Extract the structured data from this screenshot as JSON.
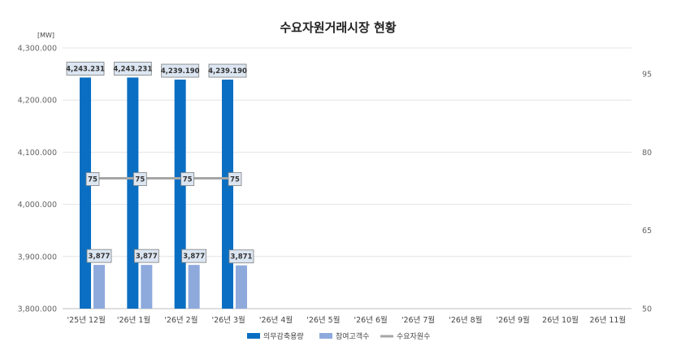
{
  "chart_data": {
    "type": "bar",
    "title": "수요자원거래시장 현황",
    "y_unit": "[MW]",
    "categories": [
      "'25년 12월",
      "'26년 1월",
      "'26년 2월",
      "'26년 3월",
      "'26년 4월",
      "'26년 5월",
      "'26년 6월",
      "'26년 7월",
      "'26년 8월",
      "'26년 9월",
      "26년 10월",
      "26년 11월"
    ],
    "ylim": [
      3800000,
      4300000
    ],
    "y_ticks": [
      "3,800.000",
      "3,900.000",
      "4,000.000",
      "4,100.000",
      "4,200.000",
      "4,300.000"
    ],
    "y2lim": [
      50,
      100
    ],
    "y2_ticks": [
      "50",
      "65",
      "80",
      "95"
    ],
    "series": [
      {
        "name": "의무감축용량",
        "type": "bar",
        "axis": "left",
        "color": "#0a6fc2",
        "values": [
          4243231,
          4243231,
          4239190,
          4239190,
          null,
          null,
          null,
          null,
          null,
          null,
          null,
          null
        ],
        "labels": [
          "4,243.231",
          "4,243.231",
          "4,239.190",
          "4,239.190"
        ]
      },
      {
        "name": "참여고객수",
        "type": "bar",
        "axis": "right",
        "color": "#8eaadc",
        "values": [
          3877,
          3877,
          3877,
          3871,
          null,
          null,
          null,
          null,
          null,
          null,
          null,
          null
        ],
        "labels": [
          "3,877",
          "3,877",
          "3,877",
          "3,871"
        ]
      },
      {
        "name": "수요자원수",
        "type": "line",
        "axis": "right",
        "color": "#a6a6a6",
        "values": [
          75,
          75,
          75,
          75,
          null,
          null,
          null,
          null,
          null,
          null,
          null,
          null
        ],
        "labels": [
          "75",
          "75",
          "75",
          "75"
        ]
      }
    ],
    "grid": true,
    "legend": "bottom"
  }
}
